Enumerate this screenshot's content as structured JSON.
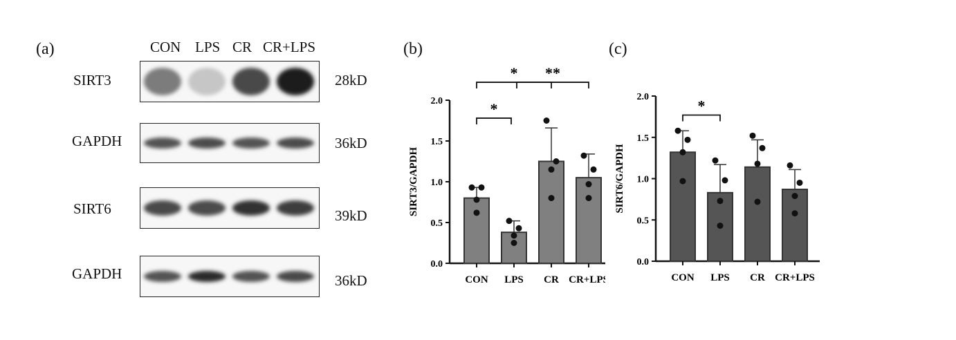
{
  "panels": {
    "a": "(a)",
    "b": "(b)",
    "c": "(c)"
  },
  "western_blot": {
    "lanes": [
      "CON",
      "LPS",
      "CR",
      "CR+LPS"
    ],
    "rows": [
      {
        "protein": "SIRT3",
        "mw": "28kD",
        "intensity": [
          0.55,
          0.2,
          0.8,
          1.0
        ]
      },
      {
        "protein": "GAPDH",
        "mw": "36kD",
        "intensity": [
          0.75,
          0.78,
          0.75,
          0.78
        ]
      },
      {
        "protein": "SIRT6",
        "mw": "39kD",
        "intensity": [
          0.8,
          0.78,
          0.9,
          0.85
        ]
      },
      {
        "protein": "GAPDH",
        "mw": "36kD",
        "intensity": [
          0.75,
          0.95,
          0.75,
          0.8
        ]
      }
    ]
  },
  "chart_data": [
    {
      "type": "bar",
      "panel": "(b)",
      "categories": [
        "CON",
        "LPS",
        "CR",
        "CR+LPS"
      ],
      "values": [
        0.8,
        0.38,
        1.25,
        1.05
      ],
      "errors": [
        0.13,
        0.14,
        0.41,
        0.29
      ],
      "points": [
        [
          0.93,
          0.93,
          0.78,
          0.62
        ],
        [
          0.52,
          0.43,
          0.34,
          0.25
        ],
        [
          1.75,
          1.25,
          1.15,
          0.8
        ],
        [
          1.32,
          1.15,
          0.97,
          0.8
        ]
      ],
      "xlabel": "",
      "ylabel": "SIRT3/GAPDH",
      "ylim": [
        0,
        2.0
      ],
      "yticks": [
        "0.0",
        "0.5",
        "1.0",
        "1.5",
        "2.0"
      ],
      "bar_color": "#808080",
      "significance": [
        {
          "from": 0,
          "to": 2,
          "label": "*"
        },
        {
          "from": 0,
          "to": 1,
          "label": "*"
        },
        {
          "from": 1,
          "to": 3,
          "label": "**"
        }
      ]
    },
    {
      "type": "bar",
      "panel": "(c)",
      "categories": [
        "CON",
        "LPS",
        "CR",
        "CR+LPS"
      ],
      "values": [
        1.32,
        0.83,
        1.14,
        0.87
      ],
      "errors": [
        0.26,
        0.34,
        0.33,
        0.24
      ],
      "points": [
        [
          1.58,
          1.47,
          1.32,
          0.97
        ],
        [
          1.22,
          0.98,
          0.73,
          0.43
        ],
        [
          1.52,
          1.37,
          1.18,
          0.72
        ],
        [
          1.16,
          0.95,
          0.79,
          0.58
        ]
      ],
      "xlabel": "",
      "ylabel": "SIRT6/GAPDH",
      "ylim": [
        0,
        2.0
      ],
      "yticks": [
        "0.0",
        "0.5",
        "1.0",
        "1.5",
        "2.0"
      ],
      "bar_color": "#555555",
      "significance": [
        {
          "from": 0,
          "to": 1,
          "label": "*"
        }
      ]
    }
  ]
}
